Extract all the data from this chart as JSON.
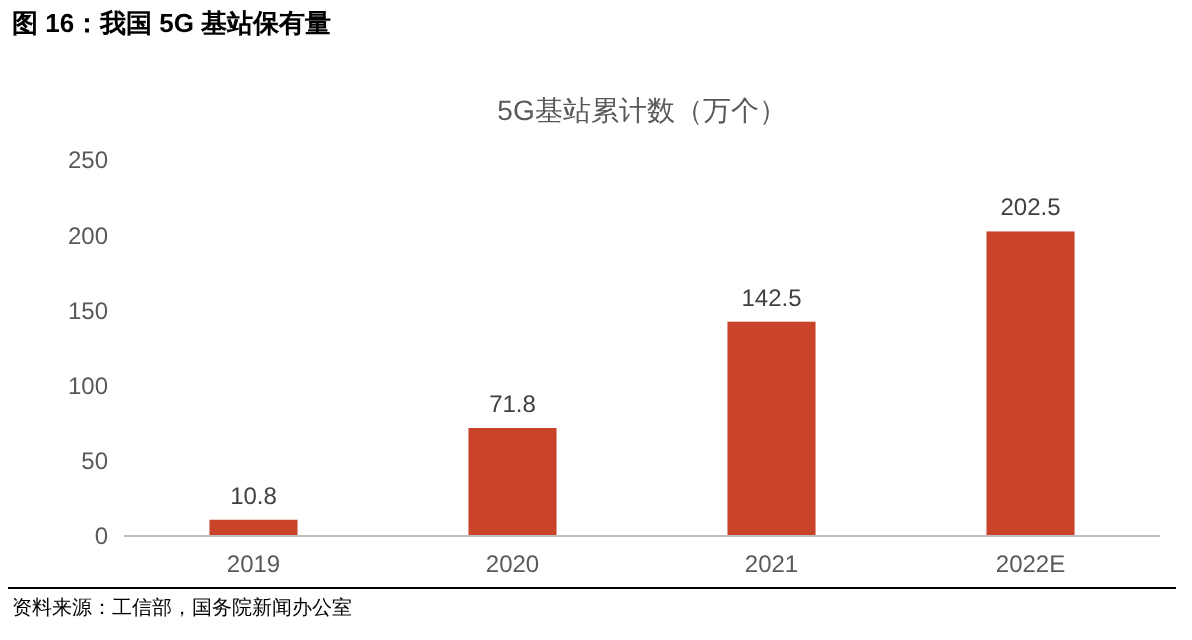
{
  "chart_data": {
    "type": "bar",
    "title": "图 16：我国 5G 基站保有量",
    "subtitle": "5G基站累计数（万个）",
    "categories": [
      "2019",
      "2020",
      "2021",
      "2022E"
    ],
    "values": [
      10.8,
      71.8,
      142.5,
      202.5
    ],
    "color": "#c8432a",
    "ylim": [
      0,
      250
    ],
    "yticks": [
      0,
      50,
      100,
      150,
      200,
      250
    ],
    "grid": false,
    "data_labels": true,
    "annotations": [
      "资料来源：工信部，国务院新闻办公室"
    ]
  }
}
